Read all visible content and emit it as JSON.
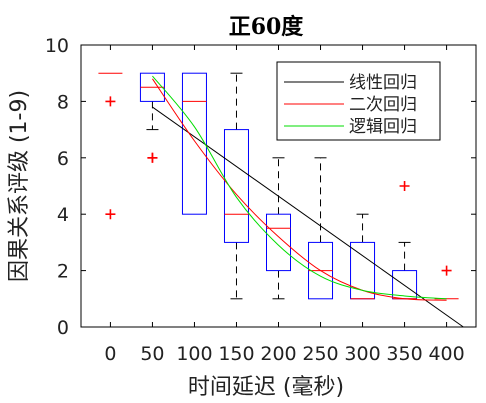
{
  "chart_data": {
    "type": "box",
    "title": "正60度",
    "xlabel": "时间延迟 (毫秒)",
    "ylabel": "因果关系评级 (1-9)",
    "categories": [
      "0",
      "50",
      "100",
      "150",
      "200",
      "250",
      "300",
      "350",
      "400"
    ],
    "x": [
      0,
      50,
      100,
      150,
      200,
      250,
      300,
      350,
      400
    ],
    "xlim": [
      -35,
      435
    ],
    "ylim": [
      0,
      10
    ],
    "yticks": [
      "0",
      "2",
      "4",
      "6",
      "8",
      "10"
    ],
    "grid": false,
    "legend_position": "top-right",
    "boxes": [
      {
        "x": 0,
        "q1": 9,
        "median": 9,
        "q3": 9,
        "whisker_low": 9,
        "whisker_high": 9,
        "outliers": [
          8,
          4
        ]
      },
      {
        "x": 50,
        "q1": 8,
        "median": 8.5,
        "q3": 9,
        "whisker_low": 7,
        "whisker_high": 9,
        "outliers": [
          6,
          6
        ]
      },
      {
        "x": 100,
        "q1": 4,
        "median": 8,
        "q3": 9,
        "whisker_low": 4,
        "whisker_high": 9,
        "outliers": []
      },
      {
        "x": 150,
        "q1": 3,
        "median": 4,
        "q3": 7,
        "whisker_low": 1,
        "whisker_high": 9,
        "outliers": []
      },
      {
        "x": 200,
        "q1": 2,
        "median": 3.5,
        "q3": 4,
        "whisker_low": 1,
        "whisker_high": 6,
        "outliers": []
      },
      {
        "x": 250,
        "q1": 1,
        "median": 2,
        "q3": 3,
        "whisker_low": 1,
        "whisker_high": 6,
        "outliers": []
      },
      {
        "x": 300,
        "q1": 1,
        "median": 1,
        "q3": 3,
        "whisker_low": 1,
        "whisker_high": 4,
        "outliers": []
      },
      {
        "x": 350,
        "q1": 1,
        "median": 1,
        "q3": 2,
        "whisker_low": 1,
        "whisker_high": 3,
        "outliers": [
          5
        ]
      },
      {
        "x": 400,
        "q1": 1,
        "median": 1,
        "q3": 1,
        "whisker_low": 1,
        "whisker_high": 1,
        "outliers": [
          2
        ]
      }
    ],
    "series": [
      {
        "name": "线性回归",
        "color": "#000000",
        "x": [
          50,
          420
        ],
        "y": [
          7.8,
          0.0
        ]
      },
      {
        "name": "二次回归",
        "color": "#ff0000",
        "x": [
          50,
          100,
          150,
          200,
          250,
          300,
          350,
          400
        ],
        "y": [
          8.8,
          6.6,
          4.7,
          3.2,
          2.0,
          1.3,
          1.0,
          0.95
        ]
      },
      {
        "name": "逻辑回归",
        "color": "#00dd00",
        "x": [
          50,
          100,
          150,
          200,
          250,
          300,
          350,
          400
        ],
        "y": [
          8.9,
          7.1,
          4.6,
          2.9,
          1.8,
          1.3,
          1.1,
          1.0
        ]
      }
    ],
    "colors": {
      "box": "#0000ff",
      "median": "#ff0000",
      "whisker": "#000000",
      "outlier": "#ff0000"
    }
  }
}
